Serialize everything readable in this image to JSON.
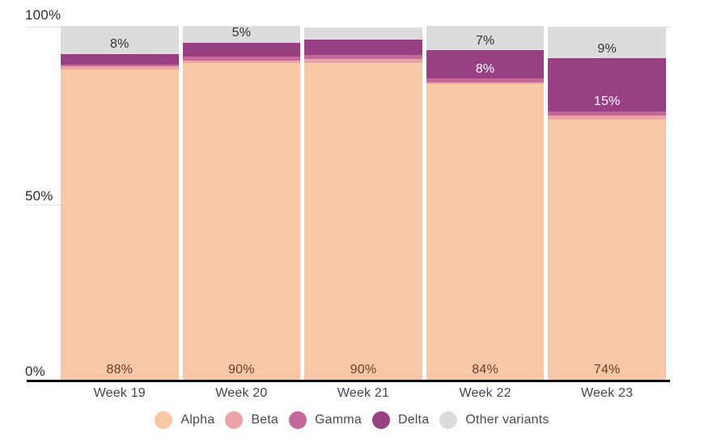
{
  "chart_data": {
    "type": "bar",
    "stacked": true,
    "unit": "%",
    "categories": [
      "Week 19",
      "Week 20",
      "Week 21",
      "Week 22",
      "Week 23"
    ],
    "series": [
      {
        "name": "Alpha",
        "color": "#f7c8a6",
        "values": [
          88,
          90,
          90,
          84,
          74
        ]
      },
      {
        "name": "Beta",
        "color": "#eda4a9",
        "values": [
          1,
          0.7,
          1,
          0.5,
          1.1
        ]
      },
      {
        "name": "Gamma",
        "color": "#c4679a",
        "values": [
          0.5,
          1,
          1.3,
          1,
          1.1
        ]
      },
      {
        "name": "Delta",
        "color": "#993f83",
        "values": [
          3,
          4,
          4.3,
          8,
          15
        ]
      },
      {
        "name": "Other variants",
        "color": "#dcdcdb",
        "values": [
          8,
          4.8,
          3.4,
          7,
          9
        ]
      }
    ],
    "segment_labels": [
      {
        "week": 0,
        "series": "Alpha",
        "text": "88%",
        "variant": "alpha"
      },
      {
        "week": 0,
        "series": "Other variants",
        "text": "8%",
        "variant": "dark"
      },
      {
        "week": 1,
        "series": "Alpha",
        "text": "90%",
        "variant": "alpha"
      },
      {
        "week": 1,
        "series": "Other variants",
        "text": "5%",
        "variant": "dark"
      },
      {
        "week": 2,
        "series": "Alpha",
        "text": "90%",
        "variant": "alpha"
      },
      {
        "week": 3,
        "series": "Alpha",
        "text": "84%",
        "variant": "alpha"
      },
      {
        "week": 3,
        "series": "Delta",
        "text": "8%",
        "variant": "white"
      },
      {
        "week": 3,
        "series": "Other variants",
        "text": "7%",
        "variant": "dark"
      },
      {
        "week": 4,
        "series": "Alpha",
        "text": "74%",
        "variant": "alpha"
      },
      {
        "week": 4,
        "series": "Delta",
        "text": "15%",
        "variant": "white"
      },
      {
        "week": 4,
        "series": "Other variants",
        "text": "9%",
        "variant": "dark"
      }
    ],
    "yticks": [
      "100%",
      "50%",
      "0%"
    ],
    "ylim": [
      0,
      100
    ],
    "xlabel": "",
    "ylabel": "",
    "grid": "partial-left-stubs",
    "legend_position": "bottom"
  },
  "colors": {
    "axis_line": "#0b0b0b",
    "tick_text": "#2d2d30",
    "week_text": "#45454e",
    "alpha_label_text": "#713a28",
    "gridline": "#dcdcdc",
    "background": "#ffffff"
  }
}
